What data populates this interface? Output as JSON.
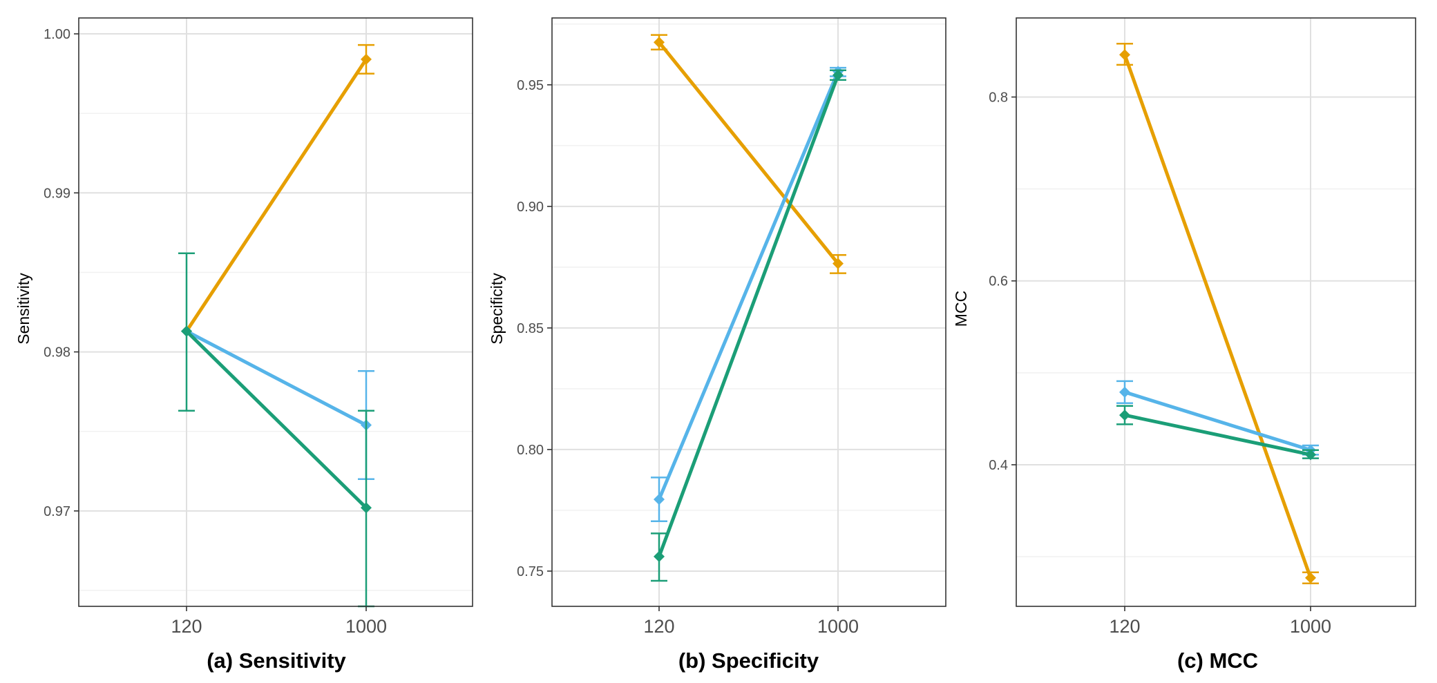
{
  "colors": {
    "orange": "#E69F00",
    "blue": "#56B4E9",
    "green": "#1B9E77",
    "grid_major": "#e0e0e0",
    "grid_minor": "#f0f0f0",
    "panel_border": "#333333"
  },
  "chart_data": [
    {
      "type": "line",
      "title": "(a) Sensitivity",
      "ylabel": "Sensitivity",
      "xlabel": "",
      "categories": [
        "120",
        "1000"
      ],
      "ylim": [
        0.964,
        1.001
      ],
      "yticks": [
        0.97,
        0.98,
        0.99,
        1.0
      ],
      "ytick_labels": [
        "0.97",
        "0.98",
        "0.99",
        "1.00"
      ],
      "grid": true,
      "series": [
        {
          "color": "orange",
          "values": [
            0.9813,
            0.9984
          ],
          "err_low": [
            null,
            0.9975
          ],
          "err_high": [
            null,
            0.9993
          ]
        },
        {
          "color": "blue",
          "values": [
            0.9813,
            0.9754
          ],
          "err_low": [
            null,
            0.972
          ],
          "err_high": [
            null,
            0.9788
          ]
        },
        {
          "color": "green",
          "values": [
            0.9813,
            0.9702
          ],
          "err_low": [
            0.9763,
            0.964
          ],
          "err_high": [
            0.9862,
            0.9763
          ]
        }
      ]
    },
    {
      "type": "line",
      "title": "(b) Specificity",
      "ylabel": "Specificity",
      "xlabel": "",
      "categories": [
        "120",
        "1000"
      ],
      "ylim": [
        0.7355,
        0.9775
      ],
      "yticks": [
        0.75,
        0.8,
        0.85,
        0.9,
        0.95
      ],
      "ytick_labels": [
        "0.75",
        "0.80",
        "0.85",
        "0.90",
        "0.95"
      ],
      "grid": true,
      "series": [
        {
          "color": "orange",
          "values": [
            0.9675,
            0.8765
          ],
          "err_low": [
            0.9645,
            0.8725
          ],
          "err_high": [
            0.9705,
            0.88
          ]
        },
        {
          "color": "blue",
          "values": [
            0.7795,
            0.9555
          ],
          "err_low": [
            0.7705,
            0.9535
          ],
          "err_high": [
            0.7885,
            0.957
          ]
        },
        {
          "color": "green",
          "values": [
            0.756,
            0.954
          ],
          "err_low": [
            0.746,
            0.952
          ],
          "err_high": [
            0.7655,
            0.956
          ]
        }
      ]
    },
    {
      "type": "line",
      "title": "(c) MCC",
      "ylabel": "MCC",
      "xlabel": "",
      "categories": [
        "120",
        "1000"
      ],
      "ylim": [
        0.246,
        0.886
      ],
      "yticks": [
        0.4,
        0.6,
        0.8
      ],
      "ytick_labels": [
        "0.4",
        "0.6",
        "0.8"
      ],
      "grid": true,
      "series": [
        {
          "color": "orange",
          "values": [
            0.846,
            0.277
          ],
          "err_low": [
            0.835,
            0.271
          ],
          "err_high": [
            0.858,
            0.283
          ]
        },
        {
          "color": "blue",
          "values": [
            0.479,
            0.416
          ],
          "err_low": [
            0.467,
            0.411
          ],
          "err_high": [
            0.491,
            0.421
          ]
        },
        {
          "color": "green",
          "values": [
            0.454,
            0.411
          ],
          "err_low": [
            0.444,
            0.407
          ],
          "err_high": [
            0.464,
            0.416
          ]
        }
      ]
    }
  ]
}
